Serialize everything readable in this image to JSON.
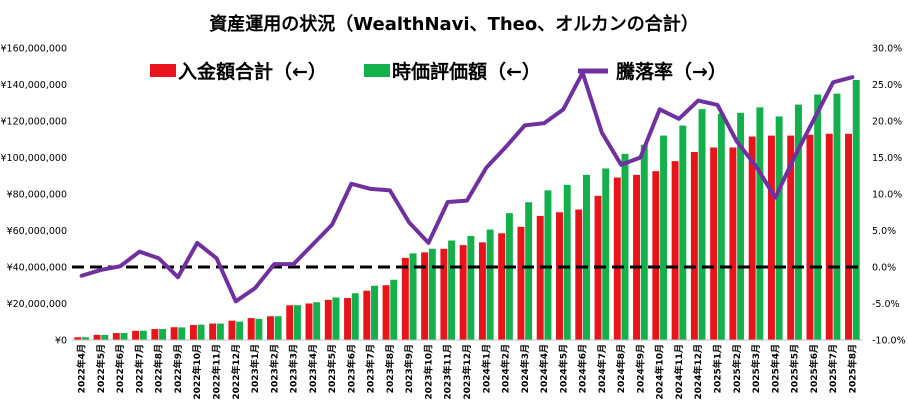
{
  "chart_data": {
    "type": "bar+line",
    "title": "資産運用の状況（WealthNavi、Theo、オルカンの合計）",
    "categories": [
      "2022年4月",
      "2022年5月",
      "2022年6月",
      "2022年7月",
      "2022年8月",
      "2022年9月",
      "2022年10月",
      "2022年11月",
      "2022年12月",
      "2023年1月",
      "2023年2月",
      "2023年3月",
      "2023年4月",
      "2023年5月",
      "2023年6月",
      "2023年7月",
      "2023年8月",
      "2023年9月",
      "2023年10月",
      "2023年11月",
      "2023年12月",
      "2024年1月",
      "2024年2月",
      "2024年3月",
      "2024年4月",
      "2024年5月",
      "2024年6月",
      "2024年7月",
      "2024年8月",
      "2024年9月",
      "2024年10月",
      "2024年11月",
      "2024年12月",
      "2025年1月",
      "2025年2月",
      "2025年3月",
      "2025年4月",
      "2025年5月",
      "2025年6月",
      "2025年7月",
      "2025年8月"
    ],
    "series": [
      {
        "name": "入金額合計（←）",
        "type": "bar",
        "axis": "left",
        "color": "#e8141b",
        "values": [
          1500000,
          2800000,
          3800000,
          5000000,
          6000000,
          7000000,
          8200000,
          9000000,
          10600000,
          12000000,
          13000000,
          19000000,
          20000000,
          22000000,
          23000000,
          27000000,
          30000000,
          45000000,
          48000000,
          50000000,
          52000000,
          53500000,
          58500000,
          62000000,
          68000000,
          70000000,
          71500000,
          79000000,
          89000000,
          90500000,
          92500000,
          98000000,
          103000000,
          105500000,
          105500000,
          111500000,
          112000000,
          112000000,
          112500000,
          113000000,
          113000000
        ]
      },
      {
        "name": "時価評価額（←）",
        "type": "bar",
        "axis": "left",
        "color": "#13b04c",
        "values": [
          1500000,
          2800000,
          3800000,
          5100000,
          6000000,
          6900000,
          8400000,
          9000000,
          10100000,
          11600000,
          13000000,
          19100000,
          20700000,
          23300000,
          25600000,
          29700000,
          33000000,
          47500000,
          50000000,
          54500000,
          57000000,
          60500000,
          69500000,
          75500000,
          82000000,
          85000000,
          90500000,
          94000000,
          102000000,
          107000000,
          112000000,
          117500000,
          126500000,
          124000000,
          124500000,
          127500000,
          122500000,
          129000000,
          134500000,
          135000000,
          142500000
        ]
      },
      {
        "name": "騰落率（→）",
        "type": "line",
        "axis": "right",
        "color": "#7030a0",
        "values": [
          -1.2,
          -0.4,
          0.1,
          2.1,
          1.2,
          -1.4,
          3.3,
          1.2,
          -4.7,
          -2.9,
          0.4,
          0.4,
          3.1,
          5.8,
          11.4,
          10.7,
          10.5,
          6.1,
          3.3,
          8.9,
          9.1,
          13.6,
          16.4,
          19.4,
          19.7,
          21.6,
          26.6,
          18.4,
          14.0,
          15.0,
          21.6,
          20.3,
          22.8,
          22.2,
          17.2,
          13.8,
          9.5,
          15.1,
          20.2,
          25.3,
          26.0
        ]
      }
    ],
    "y_left": {
      "min": 0,
      "max": 160000000,
      "step": 20000000,
      "tick_labels": [
        "¥0",
        "¥20,000,000",
        "¥40,000,000",
        "¥60,000,000",
        "¥80,000,000",
        "¥100,000,000",
        "¥120,000,000",
        "¥140,000,000",
        "¥160,000,000"
      ]
    },
    "y_right": {
      "min": -10,
      "max": 30,
      "step": 5,
      "tick_labels": [
        "-10.0%",
        "-5.0%",
        "0.0%",
        "5.0%",
        "10.0%",
        "15.0%",
        "20.0%",
        "25.0%",
        "30.0%"
      ]
    },
    "reference_line": {
      "axis": "right",
      "value": 0,
      "style": "dashed",
      "color": "#000000"
    },
    "grid": false,
    "legend": "top"
  }
}
